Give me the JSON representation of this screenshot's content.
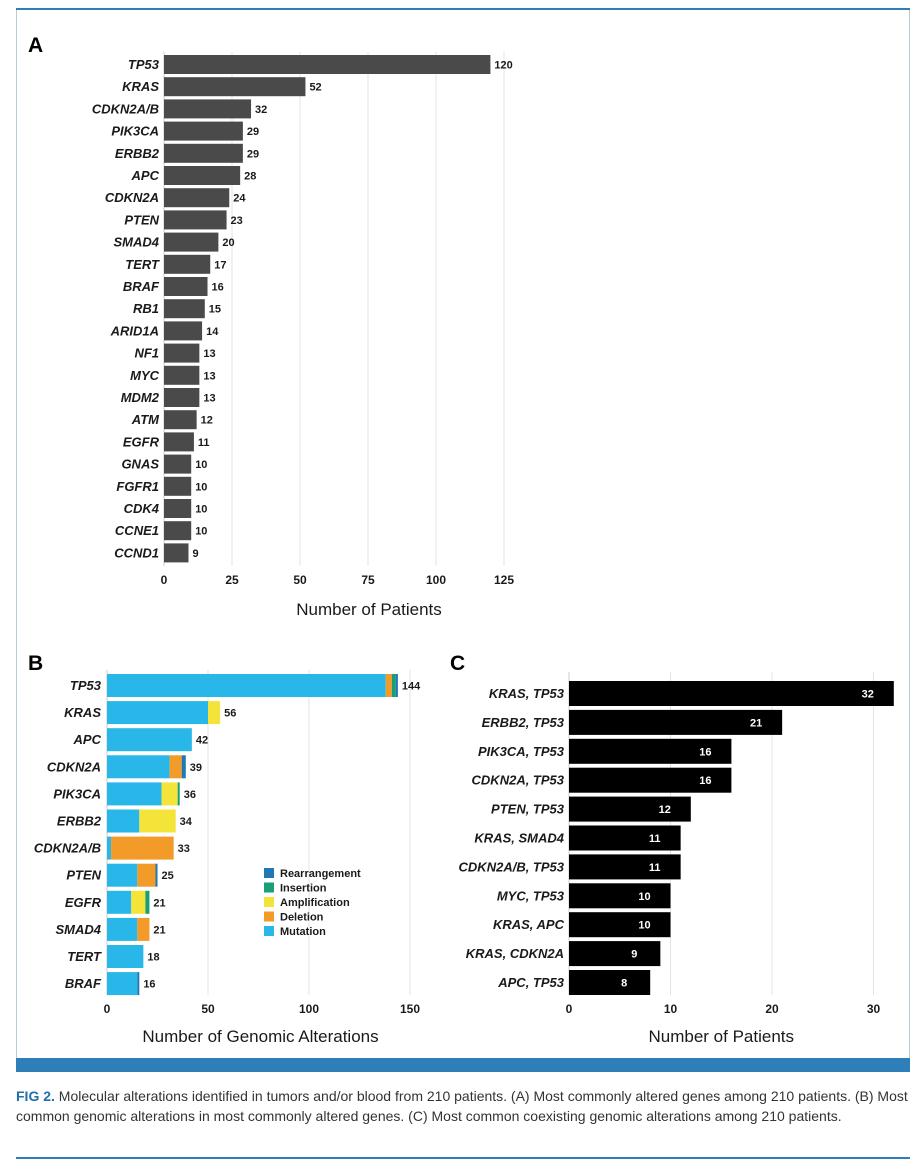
{
  "figure": {
    "caption_label": "FIG 2.",
    "caption_text": " Molecular alterations identified in tumors and/or blood from 210 patients. (A) Most commonly altered genes among 210 patients. (B) Most common genomic alterations in most commonly altered genes. (C) Most common coexisting genomic alterations among 210 patients."
  },
  "chart_data": [
    {
      "panel": "A",
      "type": "bar",
      "orientation": "horizontal",
      "xlabel": "Number of Patients",
      "xlim": [
        0,
        135
      ],
      "xticks": [
        0,
        25,
        50,
        75,
        100,
        125
      ],
      "grid": true,
      "color": "#4a4a4a",
      "categories": [
        "TP53",
        "KRAS",
        "CDKN2A/B",
        "PIK3CA",
        "ERBB2",
        "APC",
        "CDKN2A",
        "PTEN",
        "SMAD4",
        "TERT",
        "BRAF",
        "RB1",
        "ARID1A",
        "NF1",
        "MYC",
        "MDM2",
        "ATM",
        "EGFR",
        "GNAS",
        "FGFR1",
        "CDK4",
        "CCNE1",
        "CCND1"
      ],
      "values": [
        120,
        52,
        32,
        29,
        29,
        28,
        24,
        23,
        20,
        17,
        16,
        15,
        14,
        13,
        13,
        13,
        12,
        11,
        10,
        10,
        10,
        10,
        9
      ]
    },
    {
      "panel": "B",
      "type": "bar",
      "orientation": "horizontal",
      "stacked": true,
      "xlabel": "Number of Genomic Alterations",
      "xlim": [
        0,
        155
      ],
      "xticks": [
        0,
        50,
        100,
        150
      ],
      "grid": true,
      "legend_position": "right",
      "categories": [
        "TP53",
        "KRAS",
        "APC",
        "CDKN2A",
        "PIK3CA",
        "ERBB2",
        "CDKN2A/B",
        "PTEN",
        "EGFR",
        "SMAD4",
        "TERT",
        "BRAF"
      ],
      "totals": [
        144,
        56,
        42,
        39,
        36,
        34,
        33,
        25,
        21,
        21,
        18,
        16
      ],
      "series": [
        {
          "name": "Mutation",
          "color": "#29b6e8",
          "values": [
            138,
            50,
            42,
            31,
            27,
            16,
            2,
            15,
            12,
            15,
            18,
            15
          ]
        },
        {
          "name": "Deletion",
          "color": "#f29b28",
          "values": [
            3,
            0,
            0,
            6,
            0,
            0,
            31,
            9,
            0,
            6,
            0,
            0
          ]
        },
        {
          "name": "Amplification",
          "color": "#f4e43a",
          "values": [
            0,
            6,
            0,
            0,
            8,
            18,
            0,
            0,
            7,
            0,
            0,
            0
          ]
        },
        {
          "name": "Insertion",
          "color": "#1a9e78",
          "values": [
            2,
            0,
            0,
            0,
            1,
            0,
            0,
            0,
            2,
            0,
            0,
            0
          ]
        },
        {
          "name": "Rearrangement",
          "color": "#1f77b4",
          "values": [
            1,
            0,
            0,
            2,
            0,
            0,
            0,
            1,
            0,
            0,
            0,
            1
          ]
        }
      ],
      "legend_order": [
        "Rearrangement",
        "Insertion",
        "Amplification",
        "Deletion",
        "Mutation"
      ]
    },
    {
      "panel": "C",
      "type": "bar",
      "orientation": "horizontal",
      "xlabel": "Number of Patients",
      "xlim": [
        0,
        33
      ],
      "xticks": [
        0,
        10,
        20,
        30
      ],
      "grid": true,
      "color": "#000000",
      "categories": [
        "KRAS, TP53",
        "ERBB2, TP53",
        "PIK3CA, TP53",
        "CDKN2A, TP53",
        "PTEN, TP53",
        "KRAS, SMAD4",
        "CDKN2A/B, TP53",
        "MYC, TP53",
        "KRAS, APC",
        "KRAS, CDKN2A",
        "APC, TP53"
      ],
      "values": [
        32,
        21,
        16,
        16,
        12,
        11,
        11,
        10,
        10,
        9,
        8
      ]
    }
  ]
}
